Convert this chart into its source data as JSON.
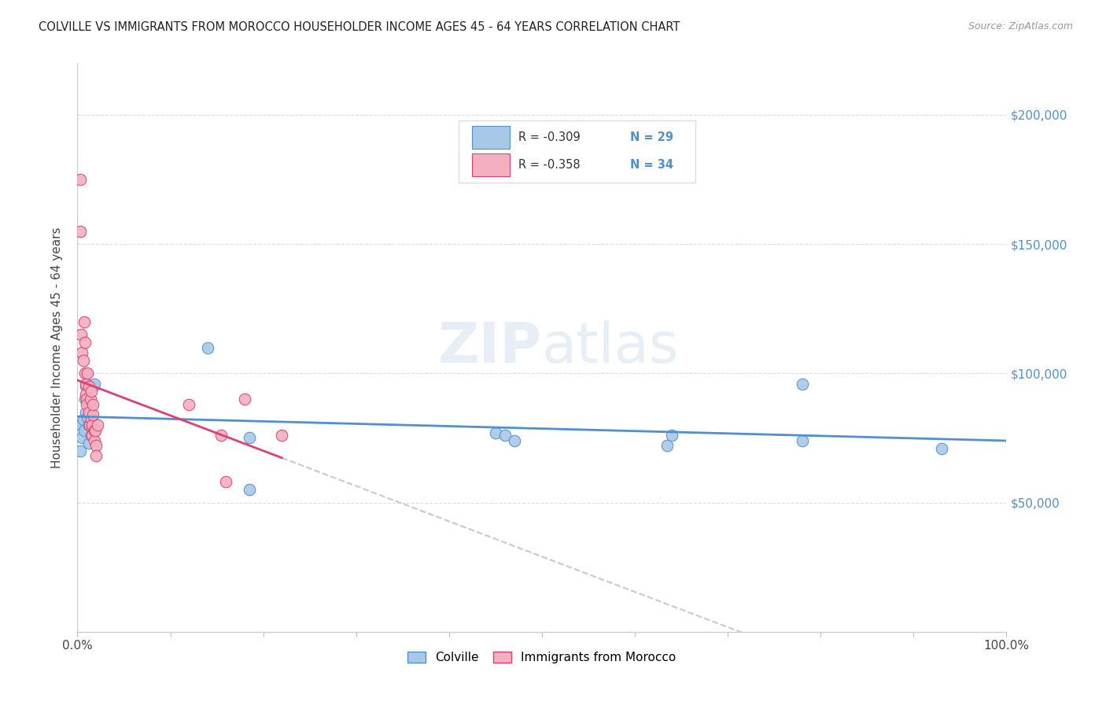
{
  "title": "COLVILLE VS IMMIGRANTS FROM MOROCCO HOUSEHOLDER INCOME AGES 45 - 64 YEARS CORRELATION CHART",
  "source": "Source: ZipAtlas.com",
  "ylabel": "Householder Income Ages 45 - 64 years",
  "legend_label1": "Colville",
  "legend_label2": "Immigrants from Morocco",
  "r1": "-0.309",
  "n1": "29",
  "r2": "-0.358",
  "n2": "34",
  "ytick_values": [
    50000,
    100000,
    150000,
    200000
  ],
  "ymin": 0,
  "ymax": 220000,
  "xmin": 0.0,
  "xmax": 1.0,
  "color_blue": "#a8c8e8",
  "color_pink": "#f4b0c0",
  "line_blue": "#5090d0",
  "line_pink": "#e04070",
  "line_dashed_color": "#c8c8d0",
  "watermark": "ZIPatlas",
  "colville_x": [
    0.003,
    0.004,
    0.005,
    0.006,
    0.007,
    0.008,
    0.009,
    0.009,
    0.01,
    0.011,
    0.012,
    0.012,
    0.013,
    0.014,
    0.015,
    0.016,
    0.017,
    0.018,
    0.14,
    0.185,
    0.185,
    0.45,
    0.46,
    0.47,
    0.635,
    0.64,
    0.78,
    0.78,
    0.93
  ],
  "colville_y": [
    70000,
    80000,
    75000,
    82000,
    78000,
    90000,
    85000,
    95000,
    96000,
    83000,
    80000,
    73000,
    88000,
    84000,
    76000,
    79000,
    95000,
    96000,
    110000,
    75000,
    55000,
    77000,
    76000,
    74000,
    72000,
    76000,
    74000,
    96000,
    71000
  ],
  "morocco_x": [
    0.003,
    0.003,
    0.004,
    0.005,
    0.006,
    0.007,
    0.008,
    0.008,
    0.009,
    0.009,
    0.01,
    0.01,
    0.011,
    0.012,
    0.012,
    0.013,
    0.014,
    0.015,
    0.015,
    0.016,
    0.016,
    0.017,
    0.017,
    0.018,
    0.018,
    0.019,
    0.02,
    0.02,
    0.022,
    0.12,
    0.155,
    0.16,
    0.18,
    0.22
  ],
  "morocco_y": [
    175000,
    155000,
    115000,
    108000,
    105000,
    120000,
    112000,
    100000,
    96000,
    92000,
    90000,
    88000,
    100000,
    95000,
    85000,
    80000,
    90000,
    93000,
    82000,
    80000,
    76000,
    84000,
    88000,
    78000,
    74000,
    78000,
    72000,
    68000,
    80000,
    88000,
    76000,
    58000,
    90000,
    76000
  ]
}
